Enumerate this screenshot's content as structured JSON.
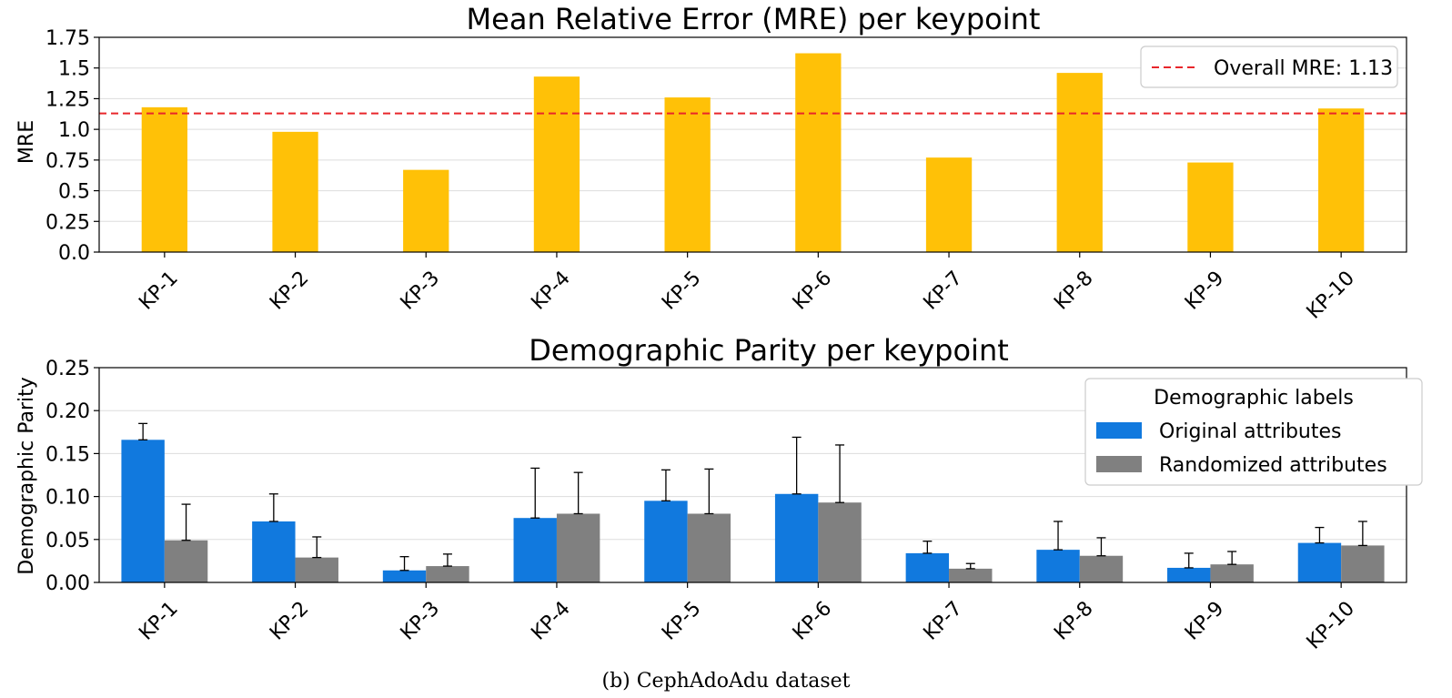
{
  "caption": "(b) CephAdoAdu dataset",
  "colors": {
    "mre_bar": "#FFC107",
    "overall_line": "#E8262B",
    "original": "#1179DE",
    "randomized": "#808080",
    "error_bar": "#000000",
    "grid": "#DDDDDD"
  },
  "chart_data": [
    {
      "type": "bar",
      "title": "Mean Relative Error (MRE) per keypoint",
      "xlabel": "",
      "ylabel": "MRE",
      "ylim": [
        0,
        1.75
      ],
      "yticks": [
        "0.0",
        "0.25",
        "0.5",
        "0.75",
        "1.0",
        "1.25",
        "1.5",
        "1.75"
      ],
      "categories": [
        "KP-1",
        "KP-2",
        "KP-3",
        "KP-4",
        "KP-5",
        "KP-6",
        "KP-7",
        "KP-8",
        "KP-9",
        "KP-10"
      ],
      "values": [
        1.18,
        0.98,
        0.67,
        1.43,
        1.26,
        1.62,
        0.77,
        1.46,
        0.73,
        1.17
      ],
      "reference_line": {
        "label": "Overall MRE: 1.13",
        "value": 1.13
      },
      "legend_position": "top-right",
      "grid": "horizontal"
    },
    {
      "type": "bar",
      "title": "Demographic Parity per keypoint",
      "xlabel": "",
      "ylabel": "Demographic Parity",
      "ylim": [
        0,
        0.25
      ],
      "yticks": [
        "0.00",
        "0.05",
        "0.10",
        "0.15",
        "0.20",
        "0.25"
      ],
      "categories": [
        "KP-1",
        "KP-2",
        "KP-3",
        "KP-4",
        "KP-5",
        "KP-6",
        "KP-7",
        "KP-8",
        "KP-9",
        "KP-10"
      ],
      "legend_title": "Demographic labels",
      "legend_position": "top-right",
      "grid": "horizontal",
      "series": [
        {
          "name": "Original attributes",
          "values": [
            0.166,
            0.071,
            0.014,
            0.075,
            0.095,
            0.103,
            0.034,
            0.038,
            0.017,
            0.046
          ],
          "error_upper": [
            0.185,
            0.103,
            0.03,
            0.133,
            0.131,
            0.169,
            0.048,
            0.071,
            0.034,
            0.064
          ]
        },
        {
          "name": "Randomized attributes",
          "values": [
            0.049,
            0.029,
            0.019,
            0.08,
            0.08,
            0.093,
            0.016,
            0.031,
            0.021,
            0.043
          ],
          "error_upper": [
            0.091,
            0.053,
            0.033,
            0.128,
            0.132,
            0.16,
            0.022,
            0.052,
            0.036,
            0.071
          ]
        }
      ]
    }
  ]
}
